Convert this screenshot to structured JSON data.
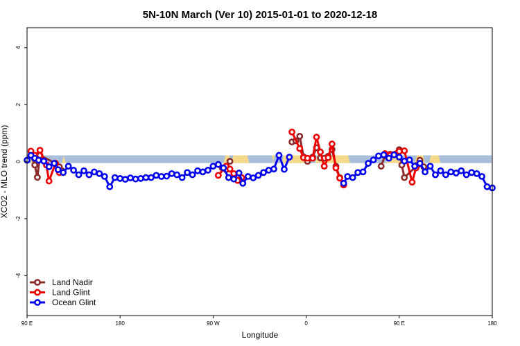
{
  "chart_data": {
    "type": "line",
    "title": "5N-10N March (Ver 10)   2015-01-01 to 2020-12-18",
    "xlabel": "Longitude",
    "ylabel": "XCO2 - MLO trend (ppm)",
    "xlim": [
      -90,
      270
    ],
    "ylim": [
      -5.4,
      4.7
    ],
    "x_ticks": [
      {
        "value": -90,
        "label": "90 E"
      },
      {
        "value": -18,
        "label": "180"
      },
      {
        "value": 54,
        "label": "90 W"
      },
      {
        "value": 126,
        "label": "0"
      },
      {
        "value": 198,
        "label": "90 E"
      },
      {
        "value": 270,
        "label": "180"
      }
    ],
    "y_ticks": [
      {
        "value": -4,
        "label": "-4"
      },
      {
        "value": -2,
        "label": "-2"
      },
      {
        "value": 0,
        "label": "0"
      },
      {
        "value": 2,
        "label": "2"
      },
      {
        "value": 4,
        "label": "4"
      }
    ],
    "legend_position": "bottom-left",
    "band": {
      "low": -0.05,
      "high": 0.22,
      "color": "#a9bfd9"
    },
    "land_segments": [
      [
        -87,
        -82
      ],
      [
        -63,
        -60
      ],
      [
        62,
        68
      ],
      [
        68,
        82
      ],
      [
        100,
        101
      ],
      [
        103,
        104
      ],
      [
        107,
        125
      ],
      [
        133,
        160
      ],
      [
        188,
        200
      ],
      [
        210,
        218
      ],
      [
        221,
        230
      ]
    ],
    "land_color": "#f5d98b",
    "series": [
      {
        "name": "Land Nadir",
        "color": "#8b2a2a",
        "points": [
          [
            -87,
            0.22
          ],
          [
            -84,
            -0.12
          ],
          [
            -82,
            -0.55
          ],
          [
            -80,
            0.22
          ],
          [
            -68,
            -0.06
          ],
          [
            -65,
            -0.18
          ],
          [
            -63,
            -0.32
          ],
          [
            61,
            -0.22
          ],
          [
            64,
            -0.28
          ],
          [
            67,
            0.01
          ],
          [
            115,
            0.69
          ],
          [
            118,
            0.73
          ],
          [
            121,
            0.89
          ],
          [
            124,
            0.17
          ],
          [
            127,
            0.01
          ],
          [
            131,
            0.16
          ],
          [
            134,
            0.49
          ],
          [
            137,
            0.13
          ],
          [
            140,
            0.12
          ],
          [
            143,
            0.19
          ],
          [
            146,
            0.43
          ],
          [
            149,
            -0.16
          ],
          [
            152,
            -0.56
          ],
          [
            155,
            -0.76
          ],
          [
            184,
            -0.16
          ],
          [
            187,
            0.21
          ],
          [
            191,
            0.26
          ],
          [
            198,
            0.42
          ],
          [
            200,
            -0.12
          ],
          [
            202,
            -0.56
          ],
          [
            212,
            -0.12
          ],
          [
            214,
            0.05
          ],
          [
            217,
            -0.18
          ]
        ]
      },
      {
        "name": "Land Glint",
        "color": "#ee0000",
        "points": [
          [
            -87,
            0.37
          ],
          [
            -84,
            0.22
          ],
          [
            -80,
            0.4
          ],
          [
            -75,
            -0.12
          ],
          [
            -73,
            -0.68
          ],
          [
            -68,
            -0.06
          ],
          [
            -65,
            -0.38
          ],
          [
            58,
            -0.48
          ],
          [
            64,
            -0.16
          ],
          [
            67,
            -0.26
          ],
          [
            70,
            -0.42
          ],
          [
            73,
            -0.66
          ],
          [
            76,
            -0.56
          ],
          [
            115,
            1.04
          ],
          [
            121,
            0.46
          ],
          [
            124,
            0.14
          ],
          [
            127,
            0.12
          ],
          [
            131,
            0.12
          ],
          [
            134,
            0.86
          ],
          [
            137,
            0.34
          ],
          [
            140,
            -0.16
          ],
          [
            143,
            0.14
          ],
          [
            146,
            0.62
          ],
          [
            149,
            -0.22
          ],
          [
            152,
            -0.58
          ],
          [
            155,
            -0.82
          ],
          [
            187,
            0.28
          ],
          [
            198,
            0.36
          ],
          [
            202,
            0.38
          ],
          [
            208,
            -0.72
          ],
          [
            211,
            -0.22
          ],
          [
            214,
            -0.06
          ]
        ]
      },
      {
        "name": "Ocean Glint",
        "color": "#0000ee",
        "points": [
          [
            -90,
            0.05
          ],
          [
            -87,
            0.22
          ],
          [
            -84,
            0.12
          ],
          [
            -81,
            0.05
          ],
          [
            -77,
            0.02
          ],
          [
            -73,
            -0.18
          ],
          [
            -69,
            -0.06
          ],
          [
            -66,
            -0.28
          ],
          [
            -62,
            -0.38
          ],
          [
            -58,
            -0.16
          ],
          [
            -54,
            -0.3
          ],
          [
            -50,
            -0.46
          ],
          [
            -46,
            -0.32
          ],
          [
            -42,
            -0.46
          ],
          [
            -38,
            -0.36
          ],
          [
            -34,
            -0.42
          ],
          [
            -30,
            -0.52
          ],
          [
            -26,
            -0.88
          ],
          [
            -22,
            -0.56
          ],
          [
            -18,
            -0.59
          ],
          [
            -14,
            -0.62
          ],
          [
            -10,
            -0.57
          ],
          [
            -6,
            -0.61
          ],
          [
            -2,
            -0.59
          ],
          [
            2,
            -0.56
          ],
          [
            6,
            -0.56
          ],
          [
            10,
            -0.48
          ],
          [
            14,
            -0.52
          ],
          [
            18,
            -0.51
          ],
          [
            22,
            -0.42
          ],
          [
            26,
            -0.46
          ],
          [
            30,
            -0.56
          ],
          [
            34,
            -0.38
          ],
          [
            38,
            -0.46
          ],
          [
            42,
            -0.32
          ],
          [
            46,
            -0.36
          ],
          [
            50,
            -0.3
          ],
          [
            54,
            -0.16
          ],
          [
            58,
            -0.1
          ],
          [
            62,
            -0.22
          ],
          [
            66,
            -0.56
          ],
          [
            70,
            -0.61
          ],
          [
            74,
            -0.4
          ],
          [
            77,
            -0.76
          ],
          [
            81,
            -0.52
          ],
          [
            85,
            -0.57
          ],
          [
            89,
            -0.48
          ],
          [
            93,
            -0.38
          ],
          [
            97,
            -0.3
          ],
          [
            101,
            -0.26
          ],
          [
            105,
            0.22
          ],
          [
            109,
            -0.27
          ],
          [
            113,
            0.16
          ],
          [
            155,
            -0.76
          ],
          [
            158,
            -0.52
          ],
          [
            162,
            -0.56
          ],
          [
            166,
            -0.38
          ],
          [
            170,
            -0.36
          ],
          [
            174,
            -0.06
          ],
          [
            178,
            0.06
          ],
          [
            182,
            0.2
          ],
          [
            186,
            0.24
          ],
          [
            190,
            0.12
          ],
          [
            194,
            0.24
          ],
          [
            198,
            0.16
          ],
          [
            202,
            0.02
          ],
          [
            206,
            0.06
          ],
          [
            210,
            -0.16
          ],
          [
            214,
            -0.06
          ],
          [
            218,
            -0.36
          ],
          [
            222,
            -0.16
          ],
          [
            226,
            -0.46
          ],
          [
            230,
            -0.32
          ],
          [
            234,
            -0.46
          ],
          [
            238,
            -0.36
          ],
          [
            242,
            -0.4
          ],
          [
            246,
            -0.32
          ],
          [
            250,
            -0.46
          ],
          [
            254,
            -0.38
          ],
          [
            258,
            -0.42
          ],
          [
            262,
            -0.52
          ],
          [
            266,
            -0.88
          ],
          [
            270,
            -0.92
          ]
        ]
      }
    ]
  }
}
